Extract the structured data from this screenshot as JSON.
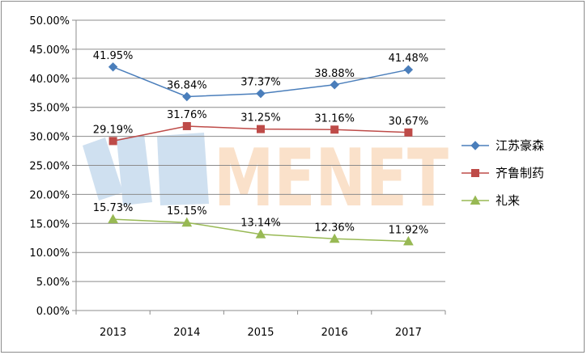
{
  "chart_data": {
    "type": "line",
    "categories": [
      "2013",
      "2014",
      "2015",
      "2016",
      "2017"
    ],
    "ylim": [
      0,
      50
    ],
    "ytick_step": 5,
    "ytick_labels": [
      "0.00%",
      "5.00%",
      "10.00%",
      "15.00%",
      "20.00%",
      "25.00%",
      "30.00%",
      "35.00%",
      "40.00%",
      "45.00%",
      "50.00%"
    ],
    "grid": true,
    "legend_position": "right",
    "series": [
      {
        "name": "江苏豪森",
        "color": "#4a7ebb",
        "marker": "diamond",
        "values": [
          41.95,
          36.84,
          37.37,
          38.88,
          41.48
        ],
        "labels": [
          "41.95%",
          "36.84%",
          "37.37%",
          "38.88%",
          "41.48%"
        ]
      },
      {
        "name": "齐鲁制药",
        "color": "#be4b48",
        "marker": "square",
        "values": [
          29.19,
          31.76,
          31.25,
          31.16,
          30.67
        ],
        "labels": [
          "29.19%",
          "31.76%",
          "31.25%",
          "31.16%",
          "30.67%"
        ]
      },
      {
        "name": "礼来",
        "color": "#98b954",
        "marker": "triangle",
        "values": [
          15.73,
          15.15,
          13.14,
          12.36,
          11.92
        ],
        "labels": [
          "15.73%",
          "15.15%",
          "13.14%",
          "12.36%",
          "11.92%"
        ]
      }
    ]
  },
  "watermark": {
    "brand": "MENET",
    "brand_color": "#f7c9a0",
    "logo_color": "#cfe0f0"
  }
}
